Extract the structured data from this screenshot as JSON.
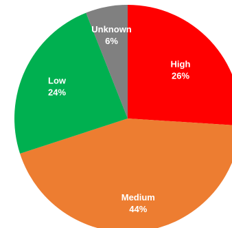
{
  "chart_data": {
    "type": "pie",
    "title": "",
    "slices": [
      {
        "label": "High",
        "percent_label": "26%",
        "value": 26,
        "color": "#ff0000"
      },
      {
        "label": "Medium",
        "percent_label": "44%",
        "value": 44,
        "color": "#ed7d31"
      },
      {
        "label": "Low",
        "percent_label": "24%",
        "value": 24,
        "color": "#00b050"
      },
      {
        "label": "Unknown",
        "percent_label": "6%",
        "value": 6,
        "color": "#808080"
      }
    ],
    "start_angle": "12 o'clock",
    "direction": "clockwise",
    "data_labels": "inside"
  }
}
